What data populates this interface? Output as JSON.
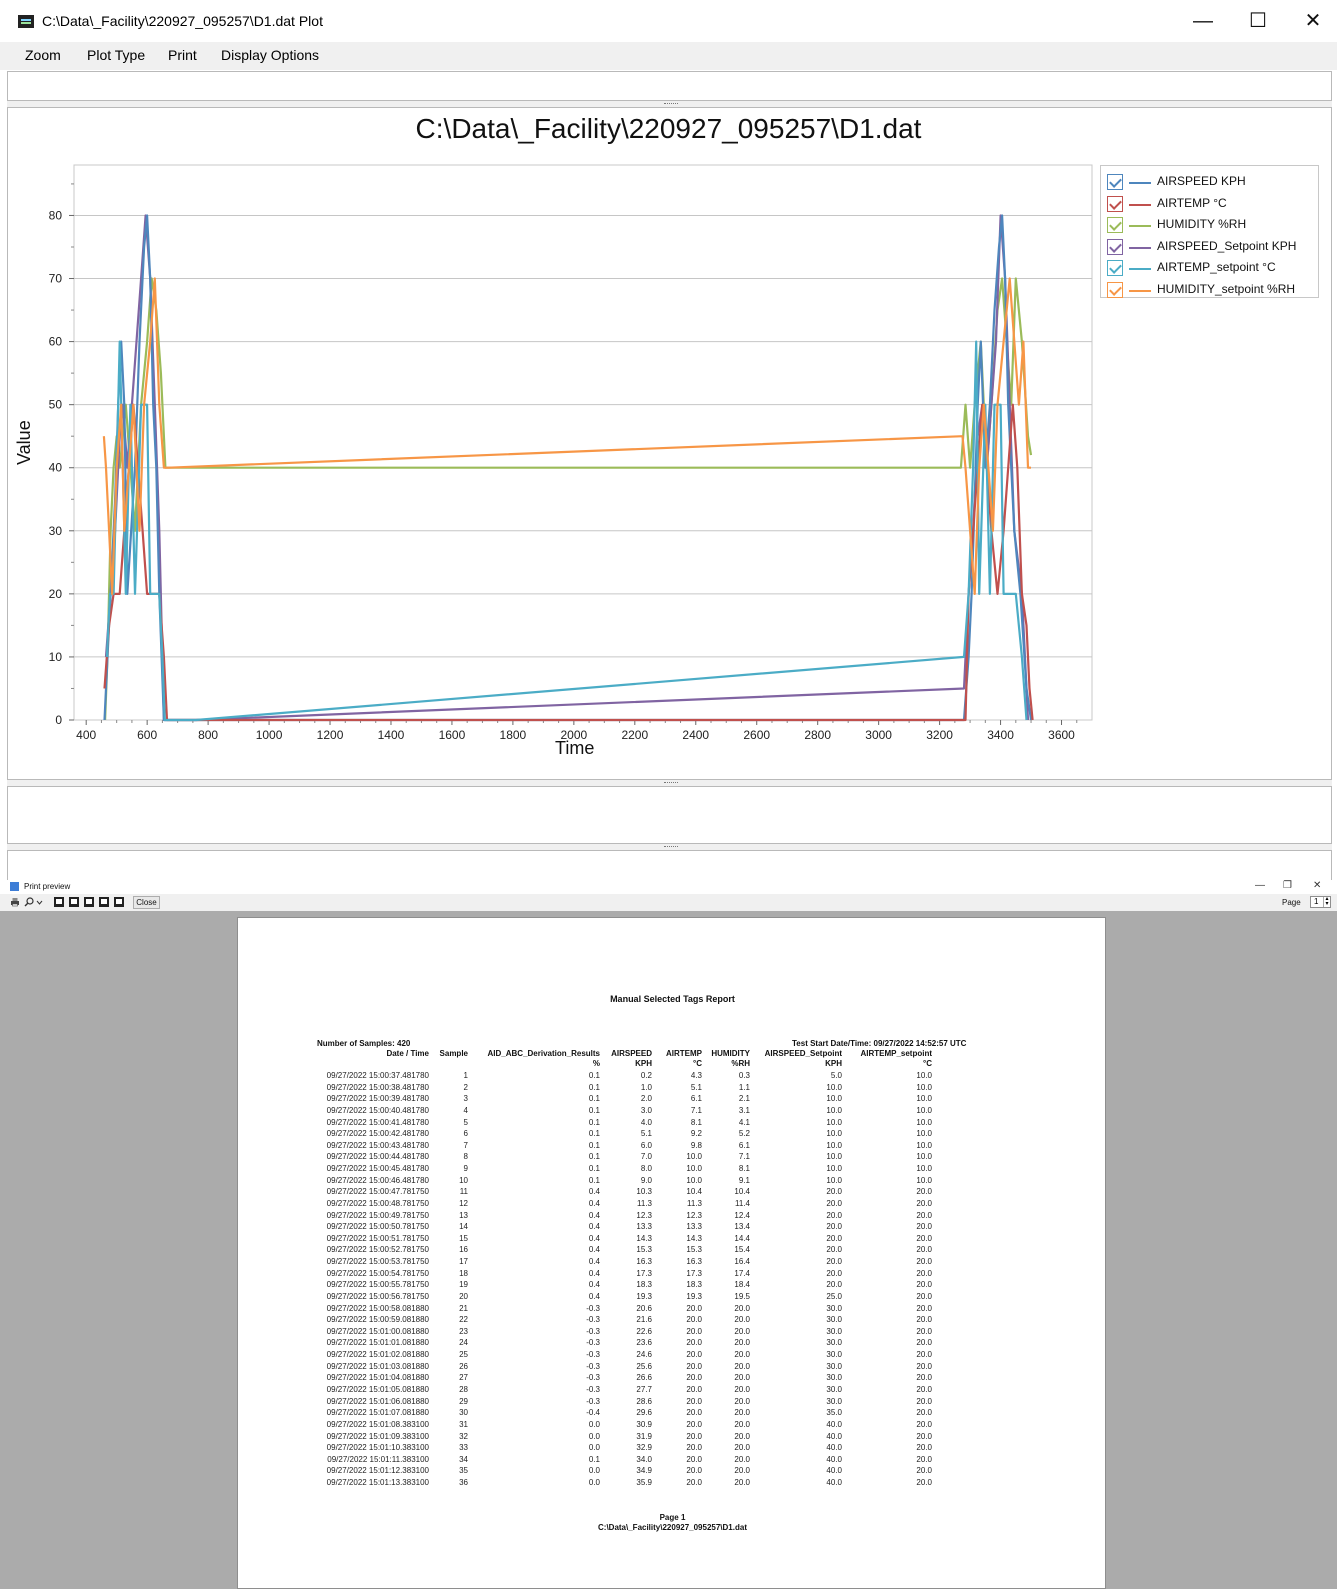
{
  "window": {
    "title": "C:\\Data\\_Facility\\220927_095257\\D1.dat Plot",
    "min_glyph": "—",
    "max_glyph": "☐",
    "close_glyph": "✕"
  },
  "menu": [
    "Zoom",
    "Plot Type",
    "Print",
    "Display Options"
  ],
  "colors": {
    "airspeed": "#4e86bd",
    "airtemp": "#c0504d",
    "humidity": "#9bbb59",
    "airspeed_setpoint": "#8064a2",
    "airtemp_setpoint": "#4bacc6",
    "humidity_setpoint": "#f79646"
  },
  "chart_data": {
    "type": "line",
    "title": "C:\\Data\\_Facility\\220927_095257\\D1.dat",
    "xlabel": "Time",
    "ylabel": "Value",
    "xlim": [
      360,
      3700
    ],
    "ylim": [
      0,
      88
    ],
    "x_ticks": [
      400,
      600,
      800,
      1000,
      1200,
      1400,
      1600,
      1800,
      2000,
      2200,
      2400,
      2600,
      2800,
      3000,
      3200,
      3400,
      3600
    ],
    "y_ticks": [
      0,
      10,
      20,
      30,
      40,
      50,
      60,
      70,
      80
    ],
    "grid": "horizontal",
    "legend_position": "top-right",
    "series": [
      {
        "name": "AIRSPEED KPH",
        "color_key": "airspeed",
        "points": [
          [
            460,
            0
          ],
          [
            470,
            10
          ],
          [
            480,
            20
          ],
          [
            495,
            35
          ],
          [
            505,
            50
          ],
          [
            515,
            60
          ],
          [
            525,
            50
          ],
          [
            535,
            20
          ],
          [
            560,
            40
          ],
          [
            575,
            60
          ],
          [
            590,
            75
          ],
          [
            600,
            80
          ],
          [
            610,
            70
          ],
          [
            620,
            50
          ],
          [
            630,
            40
          ],
          [
            640,
            20
          ],
          [
            655,
            0
          ],
          [
            680,
            0
          ],
          [
            3280,
            0
          ],
          [
            3295,
            10
          ],
          [
            3305,
            20
          ],
          [
            3315,
            35
          ],
          [
            3325,
            50
          ],
          [
            3335,
            60
          ],
          [
            3350,
            40
          ],
          [
            3365,
            50
          ],
          [
            3380,
            65
          ],
          [
            3395,
            75
          ],
          [
            3405,
            80
          ],
          [
            3415,
            70
          ],
          [
            3425,
            50
          ],
          [
            3445,
            30
          ],
          [
            3465,
            20
          ],
          [
            3485,
            5
          ],
          [
            3500,
            0
          ]
        ]
      },
      {
        "name": "AIRTEMP °C",
        "color_key": "airtemp",
        "points": [
          [
            460,
            5
          ],
          [
            475,
            15
          ],
          [
            490,
            20
          ],
          [
            510,
            20
          ],
          [
            525,
            30
          ],
          [
            540,
            40
          ],
          [
            555,
            50
          ],
          [
            570,
            40
          ],
          [
            585,
            30
          ],
          [
            600,
            20
          ],
          [
            640,
            20
          ],
          [
            655,
            10
          ],
          [
            665,
            0
          ],
          [
            3285,
            0
          ],
          [
            3295,
            20
          ],
          [
            3310,
            30
          ],
          [
            3325,
            40
          ],
          [
            3340,
            50
          ],
          [
            3355,
            40
          ],
          [
            3370,
            30
          ],
          [
            3390,
            20
          ],
          [
            3410,
            30
          ],
          [
            3425,
            40
          ],
          [
            3440,
            50
          ],
          [
            3455,
            40
          ],
          [
            3470,
            20
          ],
          [
            3485,
            15
          ],
          [
            3495,
            5
          ],
          [
            3505,
            0
          ]
        ]
      },
      {
        "name": "HUMIDITY %RH",
        "color_key": "humidity",
        "points": [
          [
            462,
            0
          ],
          [
            470,
            10
          ],
          [
            480,
            30
          ],
          [
            490,
            40
          ],
          [
            500,
            45
          ],
          [
            510,
            40
          ],
          [
            530,
            50
          ],
          [
            545,
            40
          ],
          [
            560,
            30
          ],
          [
            580,
            50
          ],
          [
            600,
            60
          ],
          [
            615,
            70
          ],
          [
            630,
            65
          ],
          [
            645,
            55
          ],
          [
            660,
            40
          ],
          [
            670,
            40
          ],
          [
            3270,
            40
          ],
          [
            3285,
            50
          ],
          [
            3300,
            40
          ],
          [
            3315,
            50
          ],
          [
            3335,
            60
          ],
          [
            3355,
            40
          ],
          [
            3370,
            50
          ],
          [
            3390,
            65
          ],
          [
            3405,
            70
          ],
          [
            3420,
            60
          ],
          [
            3435,
            50
          ],
          [
            3450,
            70
          ],
          [
            3470,
            60
          ],
          [
            3490,
            45
          ],
          [
            3500,
            42
          ]
        ]
      },
      {
        "name": "AIRSPEED_Setpoint KPH",
        "color_key": "airspeed_setpoint",
        "points": [
          [
            465,
            10
          ],
          [
            480,
            20
          ],
          [
            495,
            30
          ],
          [
            510,
            45
          ],
          [
            520,
            50
          ],
          [
            535,
            40
          ],
          [
            550,
            50
          ],
          [
            565,
            60
          ],
          [
            580,
            70
          ],
          [
            595,
            80
          ],
          [
            610,
            70
          ],
          [
            625,
            50
          ],
          [
            640,
            30
          ],
          [
            655,
            0
          ],
          [
            760,
            0
          ],
          [
            3280,
            5
          ],
          [
            3295,
            20
          ],
          [
            3310,
            30
          ],
          [
            3325,
            45
          ],
          [
            3340,
            50
          ],
          [
            3355,
            40
          ],
          [
            3370,
            50
          ],
          [
            3385,
            60
          ],
          [
            3400,
            80
          ],
          [
            3415,
            70
          ],
          [
            3430,
            50
          ],
          [
            3445,
            30
          ],
          [
            3470,
            20
          ],
          [
            3490,
            0
          ]
        ]
      },
      {
        "name": "AIRTEMP_setpoint °C",
        "color_key": "airtemp_setpoint",
        "points": [
          [
            468,
            10
          ],
          [
            478,
            20
          ],
          [
            490,
            20
          ],
          [
            500,
            40
          ],
          [
            510,
            60
          ],
          [
            520,
            40
          ],
          [
            530,
            20
          ],
          [
            545,
            50
          ],
          [
            560,
            20
          ],
          [
            580,
            50
          ],
          [
            600,
            50
          ],
          [
            610,
            20
          ],
          [
            640,
            20
          ],
          [
            650,
            10
          ],
          [
            658,
            0
          ],
          [
            760,
            0
          ],
          [
            3280,
            10
          ],
          [
            3295,
            20
          ],
          [
            3310,
            40
          ],
          [
            3320,
            60
          ],
          [
            3330,
            20
          ],
          [
            3350,
            50
          ],
          [
            3365,
            20
          ],
          [
            3380,
            50
          ],
          [
            3400,
            50
          ],
          [
            3410,
            20
          ],
          [
            3450,
            20
          ],
          [
            3470,
            10
          ],
          [
            3485,
            0
          ]
        ]
      },
      {
        "name": "HUMIDITY_setpoint %RH",
        "color_key": "humidity_setpoint",
        "points": [
          [
            458,
            45
          ],
          [
            465,
            40
          ],
          [
            475,
            30
          ],
          [
            485,
            20
          ],
          [
            500,
            40
          ],
          [
            515,
            50
          ],
          [
            525,
            30
          ],
          [
            540,
            40
          ],
          [
            555,
            50
          ],
          [
            575,
            30
          ],
          [
            590,
            50
          ],
          [
            610,
            60
          ],
          [
            625,
            70
          ],
          [
            640,
            50
          ],
          [
            655,
            40
          ],
          [
            670,
            40
          ],
          [
            3275,
            45
          ],
          [
            3285,
            40
          ],
          [
            3300,
            30
          ],
          [
            3315,
            20
          ],
          [
            3330,
            40
          ],
          [
            3345,
            50
          ],
          [
            3360,
            40
          ],
          [
            3375,
            30
          ],
          [
            3390,
            50
          ],
          [
            3410,
            60
          ],
          [
            3430,
            70
          ],
          [
            3445,
            60
          ],
          [
            3460,
            50
          ],
          [
            3475,
            60
          ],
          [
            3490,
            40
          ],
          [
            3500,
            40
          ]
        ]
      }
    ]
  },
  "print_preview": {
    "title": "Print preview",
    "close_label": "Close",
    "page_label": "Page",
    "page_value": "1",
    "min_glyph": "—",
    "restore_glyph": "❐",
    "close_glyph": "✕"
  },
  "report": {
    "title": "Manual Selected Tags Report",
    "samples": "Number of Samples: 420",
    "start": "Test Start Date/Time: 09/27/2022 14:52:57 UTC",
    "headers": [
      "Date / Time",
      "Sample",
      "AID_ABC_Derivation_Results",
      "AIRSPEED",
      "AIRTEMP",
      "HUMIDITY",
      "AIRSPEED_Setpoint",
      "AIRTEMP_setpoint"
    ],
    "units": [
      "",
      "",
      "%",
      "KPH",
      "°C",
      "%RH",
      "KPH",
      "°C"
    ],
    "rows": [
      [
        "09/27/2022 15:00:37.481780",
        "1",
        "0.1",
        "0.2",
        "4.3",
        "0.3",
        "5.0",
        "10.0"
      ],
      [
        "09/27/2022 15:00:38.481780",
        "2",
        "0.1",
        "1.0",
        "5.1",
        "1.1",
        "10.0",
        "10.0"
      ],
      [
        "09/27/2022 15:00:39.481780",
        "3",
        "0.1",
        "2.0",
        "6.1",
        "2.1",
        "10.0",
        "10.0"
      ],
      [
        "09/27/2022 15:00:40.481780",
        "4",
        "0.1",
        "3.0",
        "7.1",
        "3.1",
        "10.0",
        "10.0"
      ],
      [
        "09/27/2022 15:00:41.481780",
        "5",
        "0.1",
        "4.0",
        "8.1",
        "4.1",
        "10.0",
        "10.0"
      ],
      [
        "09/27/2022 15:00:42.481780",
        "6",
        "0.1",
        "5.1",
        "9.2",
        "5.2",
        "10.0",
        "10.0"
      ],
      [
        "09/27/2022 15:00:43.481780",
        "7",
        "0.1",
        "6.0",
        "9.8",
        "6.1",
        "10.0",
        "10.0"
      ],
      [
        "09/27/2022 15:00:44.481780",
        "8",
        "0.1",
        "7.0",
        "10.0",
        "7.1",
        "10.0",
        "10.0"
      ],
      [
        "09/27/2022 15:00:45.481780",
        "9",
        "0.1",
        "8.0",
        "10.0",
        "8.1",
        "10.0",
        "10.0"
      ],
      [
        "09/27/2022 15:00:46.481780",
        "10",
        "0.1",
        "9.0",
        "10.0",
        "9.1",
        "10.0",
        "10.0"
      ],
      [
        "09/27/2022 15:00:47.781750",
        "11",
        "0.4",
        "10.3",
        "10.4",
        "10.4",
        "20.0",
        "20.0"
      ],
      [
        "09/27/2022 15:00:48.781750",
        "12",
        "0.4",
        "11.3",
        "11.3",
        "11.4",
        "20.0",
        "20.0"
      ],
      [
        "09/27/2022 15:00:49.781750",
        "13",
        "0.4",
        "12.3",
        "12.3",
        "12.4",
        "20.0",
        "20.0"
      ],
      [
        "09/27/2022 15:00:50.781750",
        "14",
        "0.4",
        "13.3",
        "13.3",
        "13.4",
        "20.0",
        "20.0"
      ],
      [
        "09/27/2022 15:00:51.781750",
        "15",
        "0.4",
        "14.3",
        "14.3",
        "14.4",
        "20.0",
        "20.0"
      ],
      [
        "09/27/2022 15:00:52.781750",
        "16",
        "0.4",
        "15.3",
        "15.3",
        "15.4",
        "20.0",
        "20.0"
      ],
      [
        "09/27/2022 15:00:53.781750",
        "17",
        "0.4",
        "16.3",
        "16.3",
        "16.4",
        "20.0",
        "20.0"
      ],
      [
        "09/27/2022 15:00:54.781750",
        "18",
        "0.4",
        "17.3",
        "17.3",
        "17.4",
        "20.0",
        "20.0"
      ],
      [
        "09/27/2022 15:00:55.781750",
        "19",
        "0.4",
        "18.3",
        "18.3",
        "18.4",
        "20.0",
        "20.0"
      ],
      [
        "09/27/2022 15:00:56.781750",
        "20",
        "0.4",
        "19.3",
        "19.3",
        "19.5",
        "25.0",
        "20.0"
      ],
      [
        "09/27/2022 15:00:58.081880",
        "21",
        "-0.3",
        "20.6",
        "20.0",
        "20.0",
        "30.0",
        "20.0"
      ],
      [
        "09/27/2022 15:00:59.081880",
        "22",
        "-0.3",
        "21.6",
        "20.0",
        "20.0",
        "30.0",
        "20.0"
      ],
      [
        "09/27/2022 15:01:00.081880",
        "23",
        "-0.3",
        "22.6",
        "20.0",
        "20.0",
        "30.0",
        "20.0"
      ],
      [
        "09/27/2022 15:01:01.081880",
        "24",
        "-0.3",
        "23.6",
        "20.0",
        "20.0",
        "30.0",
        "20.0"
      ],
      [
        "09/27/2022 15:01:02.081880",
        "25",
        "-0.3",
        "24.6",
        "20.0",
        "20.0",
        "30.0",
        "20.0"
      ],
      [
        "09/27/2022 15:01:03.081880",
        "26",
        "-0.3",
        "25.6",
        "20.0",
        "20.0",
        "30.0",
        "20.0"
      ],
      [
        "09/27/2022 15:01:04.081880",
        "27",
        "-0.3",
        "26.6",
        "20.0",
        "20.0",
        "30.0",
        "20.0"
      ],
      [
        "09/27/2022 15:01:05.081880",
        "28",
        "-0.3",
        "27.7",
        "20.0",
        "20.0",
        "30.0",
        "20.0"
      ],
      [
        "09/27/2022 15:01:06.081880",
        "29",
        "-0.3",
        "28.6",
        "20.0",
        "20.0",
        "30.0",
        "20.0"
      ],
      [
        "09/27/2022 15:01:07.081880",
        "30",
        "-0.4",
        "29.6",
        "20.0",
        "20.0",
        "35.0",
        "20.0"
      ],
      [
        "09/27/2022 15:01:08.383100",
        "31",
        "0.0",
        "30.9",
        "20.0",
        "20.0",
        "40.0",
        "20.0"
      ],
      [
        "09/27/2022 15:01:09.383100",
        "32",
        "0.0",
        "31.9",
        "20.0",
        "20.0",
        "40.0",
        "20.0"
      ],
      [
        "09/27/2022 15:01:10.383100",
        "33",
        "0.0",
        "32.9",
        "20.0",
        "20.0",
        "40.0",
        "20.0"
      ],
      [
        "09/27/2022 15:01:11.383100",
        "34",
        "0.1",
        "34.0",
        "20.0",
        "20.0",
        "40.0",
        "20.0"
      ],
      [
        "09/27/2022 15:01:12.383100",
        "35",
        "0.0",
        "34.9",
        "20.0",
        "20.0",
        "40.0",
        "20.0"
      ],
      [
        "09/27/2022 15:01:13.383100",
        "36",
        "0.0",
        "35.9",
        "20.0",
        "20.0",
        "40.0",
        "20.0"
      ]
    ],
    "footer_page": "Page 1",
    "footer_file": "C:\\Data\\_Facility\\220927_095257\\D1.dat"
  }
}
